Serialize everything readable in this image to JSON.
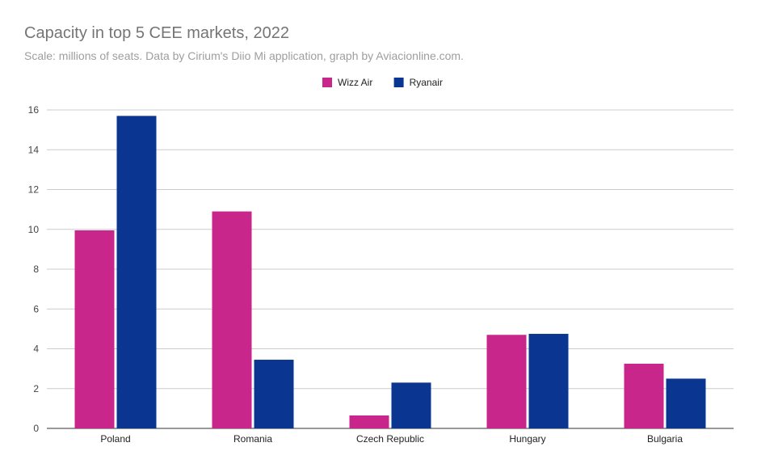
{
  "chart_data": {
    "type": "bar",
    "title": "Capacity in top 5 CEE markets, 2022",
    "subtitle": "Scale: millions of seats. Data by Cirium's Diio Mi application, graph by Aviacionline.com.",
    "categories": [
      "Poland",
      "Romania",
      "Czech Republic",
      "Hungary",
      "Bulgaria"
    ],
    "series": [
      {
        "name": "Wizz Air",
        "color": "#c9268b",
        "values": [
          9.95,
          10.9,
          0.65,
          4.7,
          3.25
        ]
      },
      {
        "name": "Ryanair",
        "color": "#0a3591",
        "values": [
          15.7,
          3.45,
          2.3,
          4.75,
          2.5
        ]
      }
    ],
    "ylim": [
      0,
      16
    ],
    "yticks": [
      "0",
      "2",
      "4",
      "6",
      "8",
      "10",
      "12",
      "14",
      "16"
    ],
    "grid": true,
    "legend_position": "top-center",
    "xlabel": "",
    "ylabel": ""
  }
}
